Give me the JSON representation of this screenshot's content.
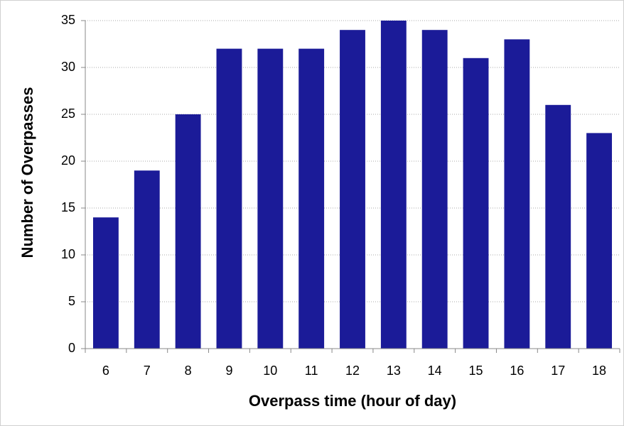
{
  "chart_data": {
    "type": "bar",
    "xlabel": "Overpass time (hour of day)",
    "ylabel": "Number of Overpasses",
    "categories": [
      "6",
      "7",
      "8",
      "9",
      "10",
      "11",
      "12",
      "13",
      "14",
      "15",
      "16",
      "17",
      "18"
    ],
    "values": [
      14,
      19,
      25,
      32,
      32,
      32,
      34,
      35,
      34,
      31,
      33,
      26,
      23
    ],
    "color": "#1b1b98",
    "ylim": [
      0,
      35
    ],
    "yticks": [
      0,
      5,
      10,
      15,
      20,
      25,
      30,
      35
    ],
    "grid": true
  }
}
